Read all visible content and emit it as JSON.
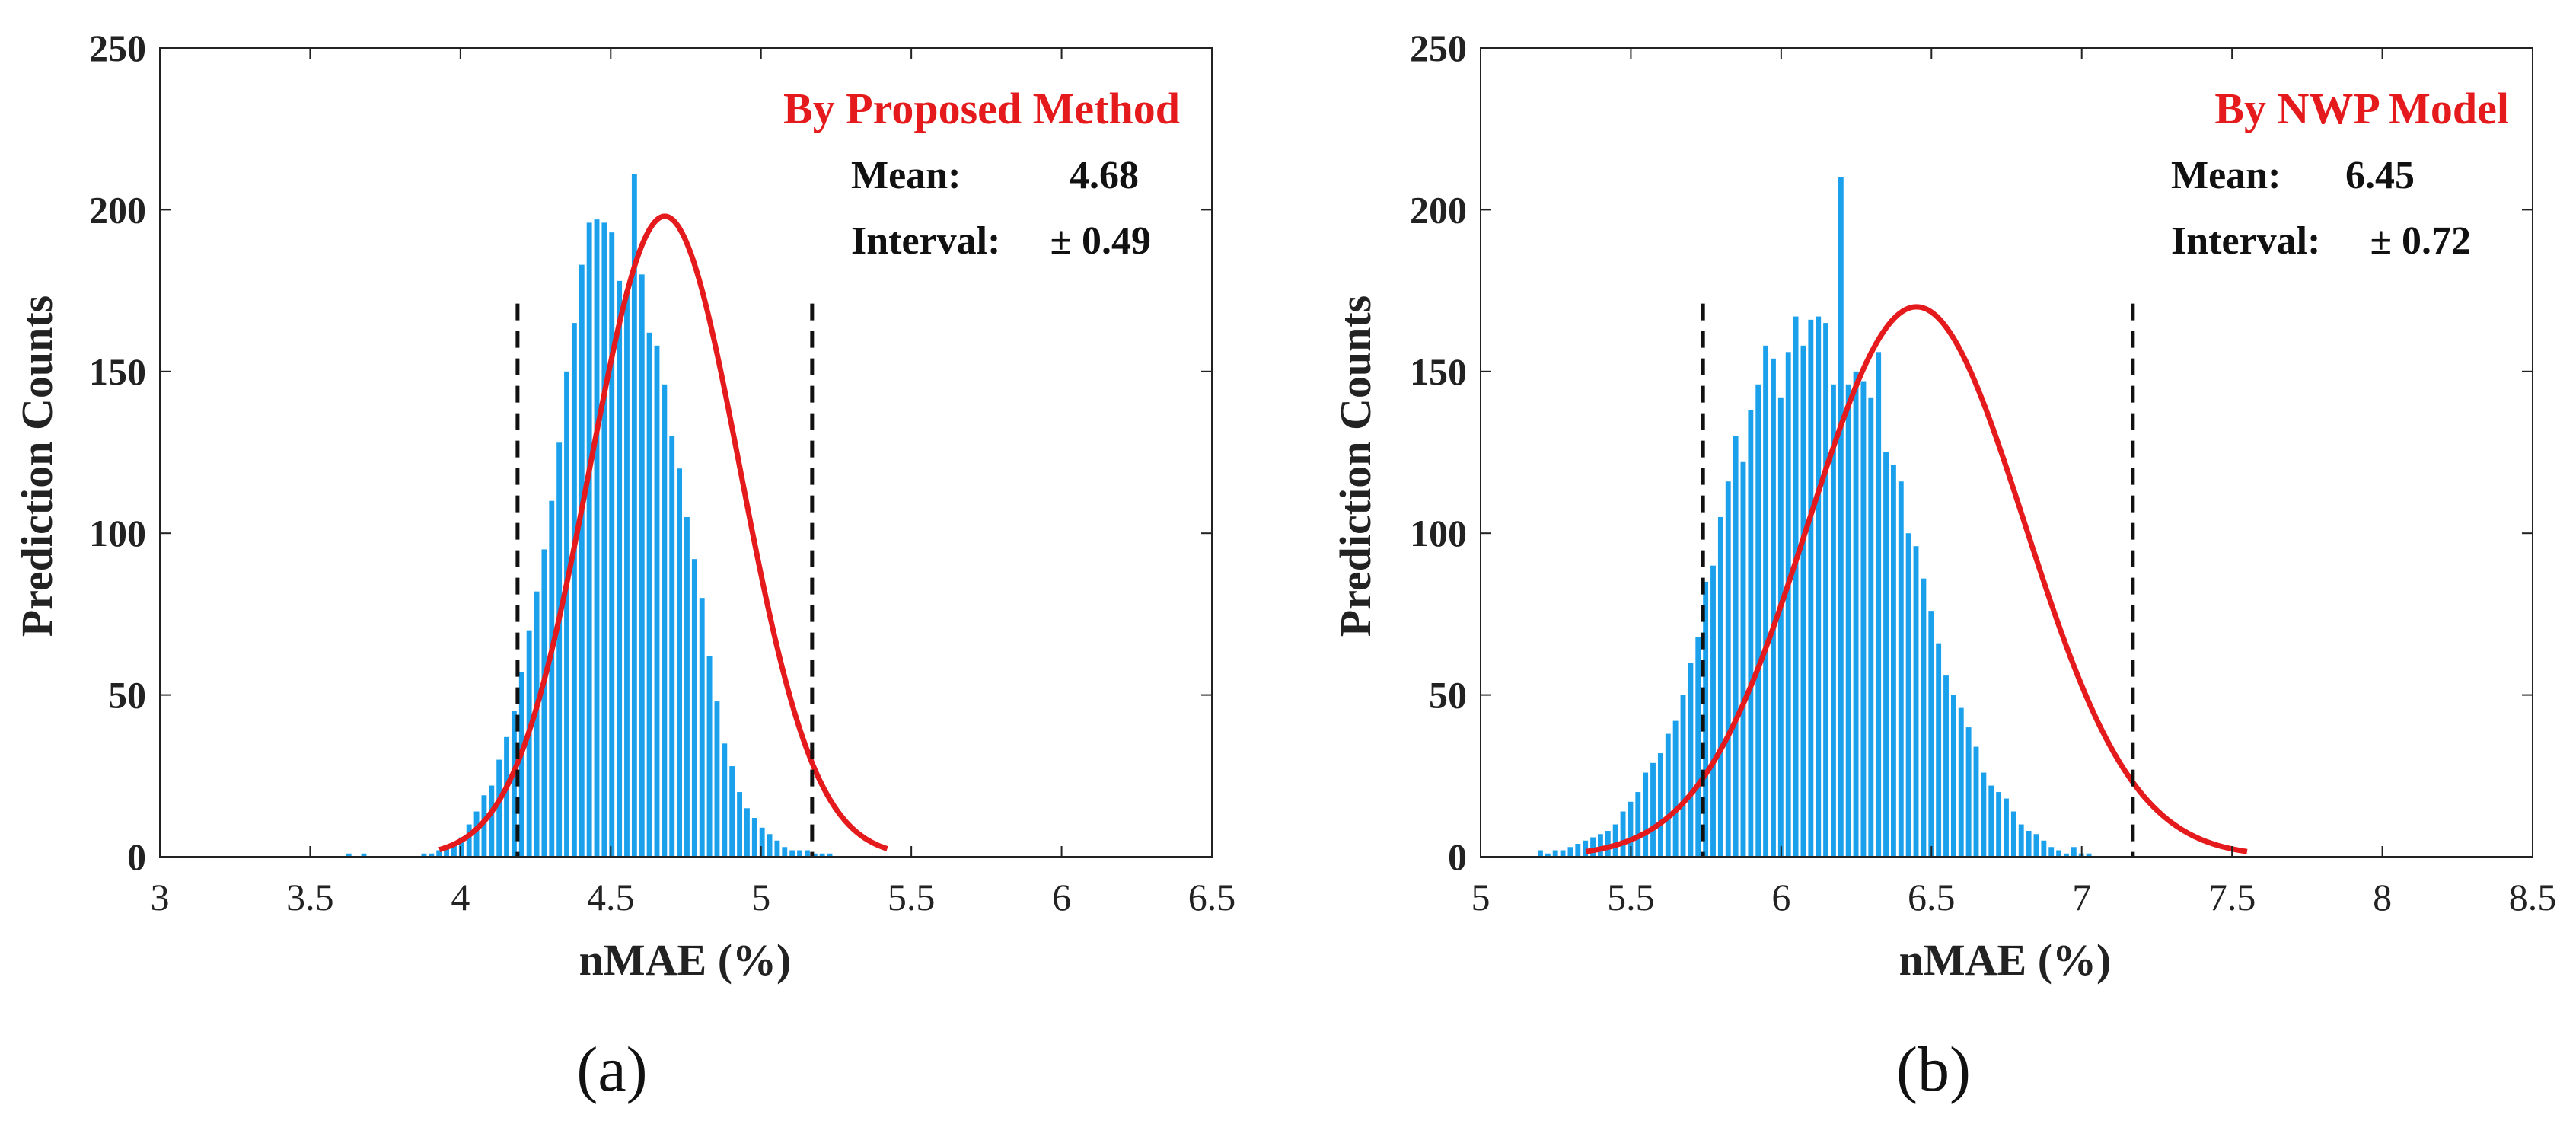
{
  "colors": {
    "bar": "#1ba1ec",
    "fit": "#e41a1c",
    "annotation": "#e41a1c",
    "text": "#222222",
    "dashed": "#111111"
  },
  "chart_data": [
    {
      "type": "bar",
      "subplot_label": "(a)",
      "title": "By Proposed Method",
      "xlabel": "nMAE (%)",
      "ylabel": "Prediction Counts",
      "xlim": [
        3,
        6.5
      ],
      "ylim": [
        0,
        250
      ],
      "xticks": [
        "3",
        "3.5",
        "4",
        "4.5",
        "5",
        "5.5",
        "6",
        "6.5"
      ],
      "yticks": [
        "0",
        "50",
        "100",
        "150",
        "200",
        "250"
      ],
      "bin_start": 3.62,
      "bin_width": 0.025,
      "values": [
        1,
        0,
        1,
        0,
        0,
        0,
        0,
        0,
        0,
        0,
        1,
        1,
        2,
        3,
        4,
        6,
        10,
        14,
        19,
        22,
        30,
        37,
        45,
        57,
        70,
        82,
        95,
        110,
        128,
        150,
        165,
        183,
        196,
        197,
        196,
        193,
        178,
        175,
        211,
        180,
        162,
        158,
        146,
        130,
        120,
        105,
        92,
        80,
        62,
        48,
        35,
        28,
        20,
        15,
        12,
        9,
        7,
        5,
        3,
        2,
        2,
        2,
        1,
        1,
        1,
        0
      ],
      "fit": {
        "mean": 4.68,
        "sd": 0.25,
        "peak": 198,
        "range": [
          3.93,
          5.42
        ]
      },
      "interval_lines": [
        4.19,
        5.17
      ],
      "interval_line_top": 171,
      "stats": {
        "mean_label": "Mean:",
        "mean_value": "4.68",
        "interval_label": "Interval:",
        "interval_value": "± 0.49"
      }
    },
    {
      "type": "bar",
      "subplot_label": "(b)",
      "title": "By NWP Model",
      "xlabel": "nMAE (%)",
      "ylabel": "Prediction Counts",
      "xlim": [
        5,
        8.5
      ],
      "ylim": [
        0,
        250
      ],
      "xticks": [
        "5",
        "5.5",
        "6",
        "6.5",
        "7",
        "7.5",
        "8",
        "8.5"
      ],
      "yticks": [
        "0",
        "50",
        "100",
        "150",
        "200",
        "250"
      ],
      "bin_start": 5.19,
      "bin_width": 0.025,
      "values": [
        2,
        1,
        2,
        2,
        3,
        4,
        5,
        6,
        7,
        8,
        10,
        14,
        17,
        20,
        26,
        29,
        32,
        38,
        42,
        50,
        60,
        68,
        85,
        90,
        105,
        116,
        130,
        122,
        138,
        146,
        158,
        154,
        142,
        156,
        167,
        158,
        166,
        167,
        165,
        146,
        210,
        146,
        150,
        147,
        142,
        156,
        125,
        121,
        116,
        100,
        96,
        86,
        76,
        66,
        56,
        50,
        46,
        40,
        34,
        26,
        22,
        20,
        18,
        14,
        10,
        8,
        7,
        5,
        3,
        2,
        1,
        3,
        1,
        1,
        0
      ],
      "fit": {
        "mean": 6.45,
        "sd": 0.36,
        "peak": 170,
        "range": [
          5.35,
          7.55
        ]
      },
      "interval_lines": [
        5.74,
        7.17
      ],
      "interval_line_top": 171,
      "stats": {
        "mean_label": "Mean:",
        "mean_value": "6.45",
        "interval_label": "Interval:",
        "interval_value": "± 0.72"
      }
    }
  ]
}
